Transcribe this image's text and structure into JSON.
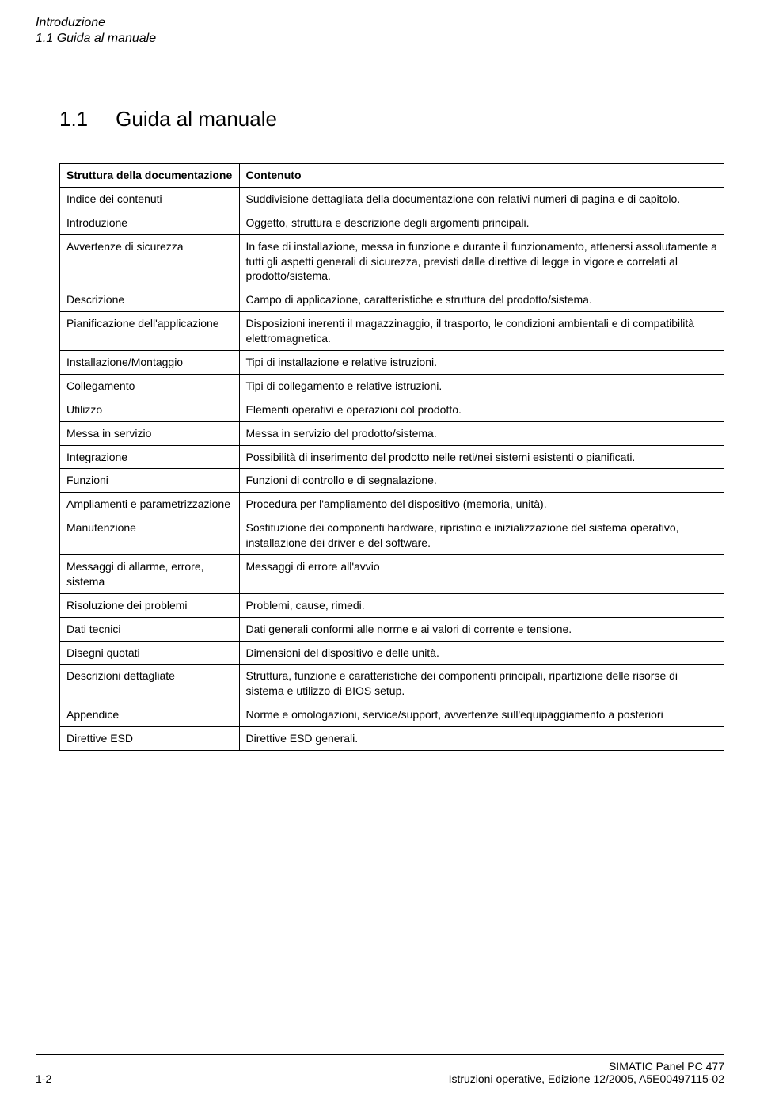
{
  "header": {
    "title": "Introduzione",
    "subtitle": "1.1 Guida al manuale"
  },
  "section": {
    "number": "1.1",
    "title": "Guida al manuale"
  },
  "table": {
    "header_left": "Struttura della documentazione",
    "header_right": "Contenuto",
    "rows": [
      {
        "left": "Indice dei contenuti",
        "right": "Suddivisione dettagliata della documentazione con relativi numeri di pagina e di capitolo."
      },
      {
        "left": "Introduzione",
        "right": "Oggetto, struttura e descrizione degli argomenti principali."
      },
      {
        "left": "Avvertenze di sicurezza",
        "right": "In fase di installazione, messa in funzione e durante il funzionamento, attenersi assolutamente a tutti gli aspetti generali di sicurezza, previsti dalle direttive di legge in vigore e correlati al prodotto/sistema."
      },
      {
        "left": "Descrizione",
        "right": "Campo di applicazione, caratteristiche e struttura del prodotto/sistema."
      },
      {
        "left": "Pianificazione dell'applicazione",
        "right": "Disposizioni inerenti il magazzinaggio, il trasporto, le condizioni ambientali e di compatibilità elettromagnetica."
      },
      {
        "left": "Installazione/Montaggio",
        "right": "Tipi di installazione e relative istruzioni."
      },
      {
        "left": "Collegamento",
        "right": "Tipi di collegamento e relative istruzioni."
      },
      {
        "left": "Utilizzo",
        "right": "Elementi operativi e operazioni col prodotto."
      },
      {
        "left": "Messa in servizio",
        "right": "Messa in servizio del prodotto/sistema."
      },
      {
        "left": "Integrazione",
        "right": "Possibilità di inserimento del prodotto nelle reti/nei sistemi esistenti o pianificati."
      },
      {
        "left": "Funzioni",
        "right": "Funzioni di controllo e di segnalazione."
      },
      {
        "left": "Ampliamenti e parametrizzazione",
        "right": "Procedura per l'ampliamento del dispositivo (memoria, unità)."
      },
      {
        "left": "Manutenzione",
        "right": "Sostituzione dei componenti hardware, ripristino e inizializzazione del sistema operativo, installazione dei driver e del software."
      },
      {
        "left": "Messaggi di allarme, errore, sistema",
        "right": "Messaggi di errore all'avvio"
      },
      {
        "left": "Risoluzione dei problemi",
        "right": "Problemi, cause, rimedi."
      },
      {
        "left": "Dati tecnici",
        "right": "Dati generali conformi alle norme e ai valori di corrente e tensione."
      },
      {
        "left": "Disegni quotati",
        "right": "Dimensioni del dispositivo e delle unità."
      },
      {
        "left": "Descrizioni dettagliate",
        "right": "Struttura, funzione e caratteristiche dei componenti principali, ripartizione delle risorse di sistema e utilizzo di BIOS setup."
      },
      {
        "left": "Appendice",
        "right": "Norme e omologazioni, service/support, avvertenze sull'equipaggiamento a posteriori"
      },
      {
        "left": "Direttive ESD",
        "right": "Direttive ESD generali."
      }
    ]
  },
  "footer": {
    "page_number": "1-2",
    "product": "SIMATIC Panel PC 477",
    "doc_info": "Istruzioni operative, Edizione 12/2005, A5E00497115-02"
  }
}
